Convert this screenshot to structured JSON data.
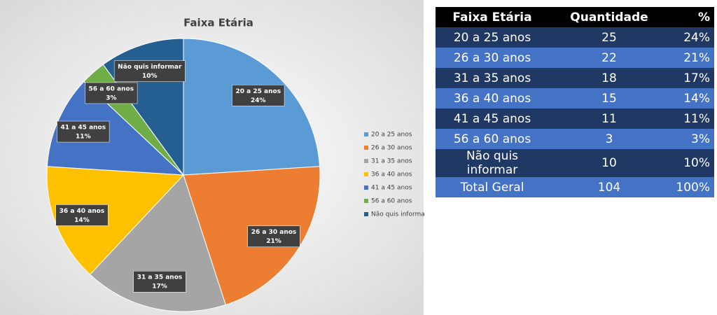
{
  "chart_data": {
    "type": "pie",
    "title": "Faixa Etária",
    "categories": [
      "20 a 25 anos",
      "26 a 30 anos",
      "31 a 35 anos",
      "36 a 40 anos",
      "41 a 45 anos",
      "56 a 60 anos",
      "Não quis informar"
    ],
    "values": [
      24,
      21,
      17,
      14,
      11,
      3,
      10
    ],
    "value_labels": [
      "24%",
      "21%",
      "17%",
      "14%",
      "11%",
      "3%",
      "10%"
    ],
    "colors": [
      "#5b9bd5",
      "#ed7d31",
      "#a5a5a5",
      "#ffc000",
      "#4472c4",
      "#70ad47",
      "#255e91"
    ],
    "legend": "right"
  },
  "table": {
    "header": [
      "Faixa Etária",
      "Quantidade",
      "%"
    ],
    "rows": [
      [
        "20 a 25 anos",
        "25",
        "24%"
      ],
      [
        "26 a 30 anos",
        "22",
        "21%"
      ],
      [
        "31 a 35 anos",
        "18",
        "17%"
      ],
      [
        "36 a 40 anos",
        "15",
        "14%"
      ],
      [
        "41 a 45 anos",
        "11",
        "11%"
      ],
      [
        "56 a 60 anos",
        "3",
        "3%"
      ],
      [
        "Não quis informar",
        "10",
        "10%"
      ],
      [
        "Total Geral",
        "104",
        "100%"
      ]
    ]
  }
}
